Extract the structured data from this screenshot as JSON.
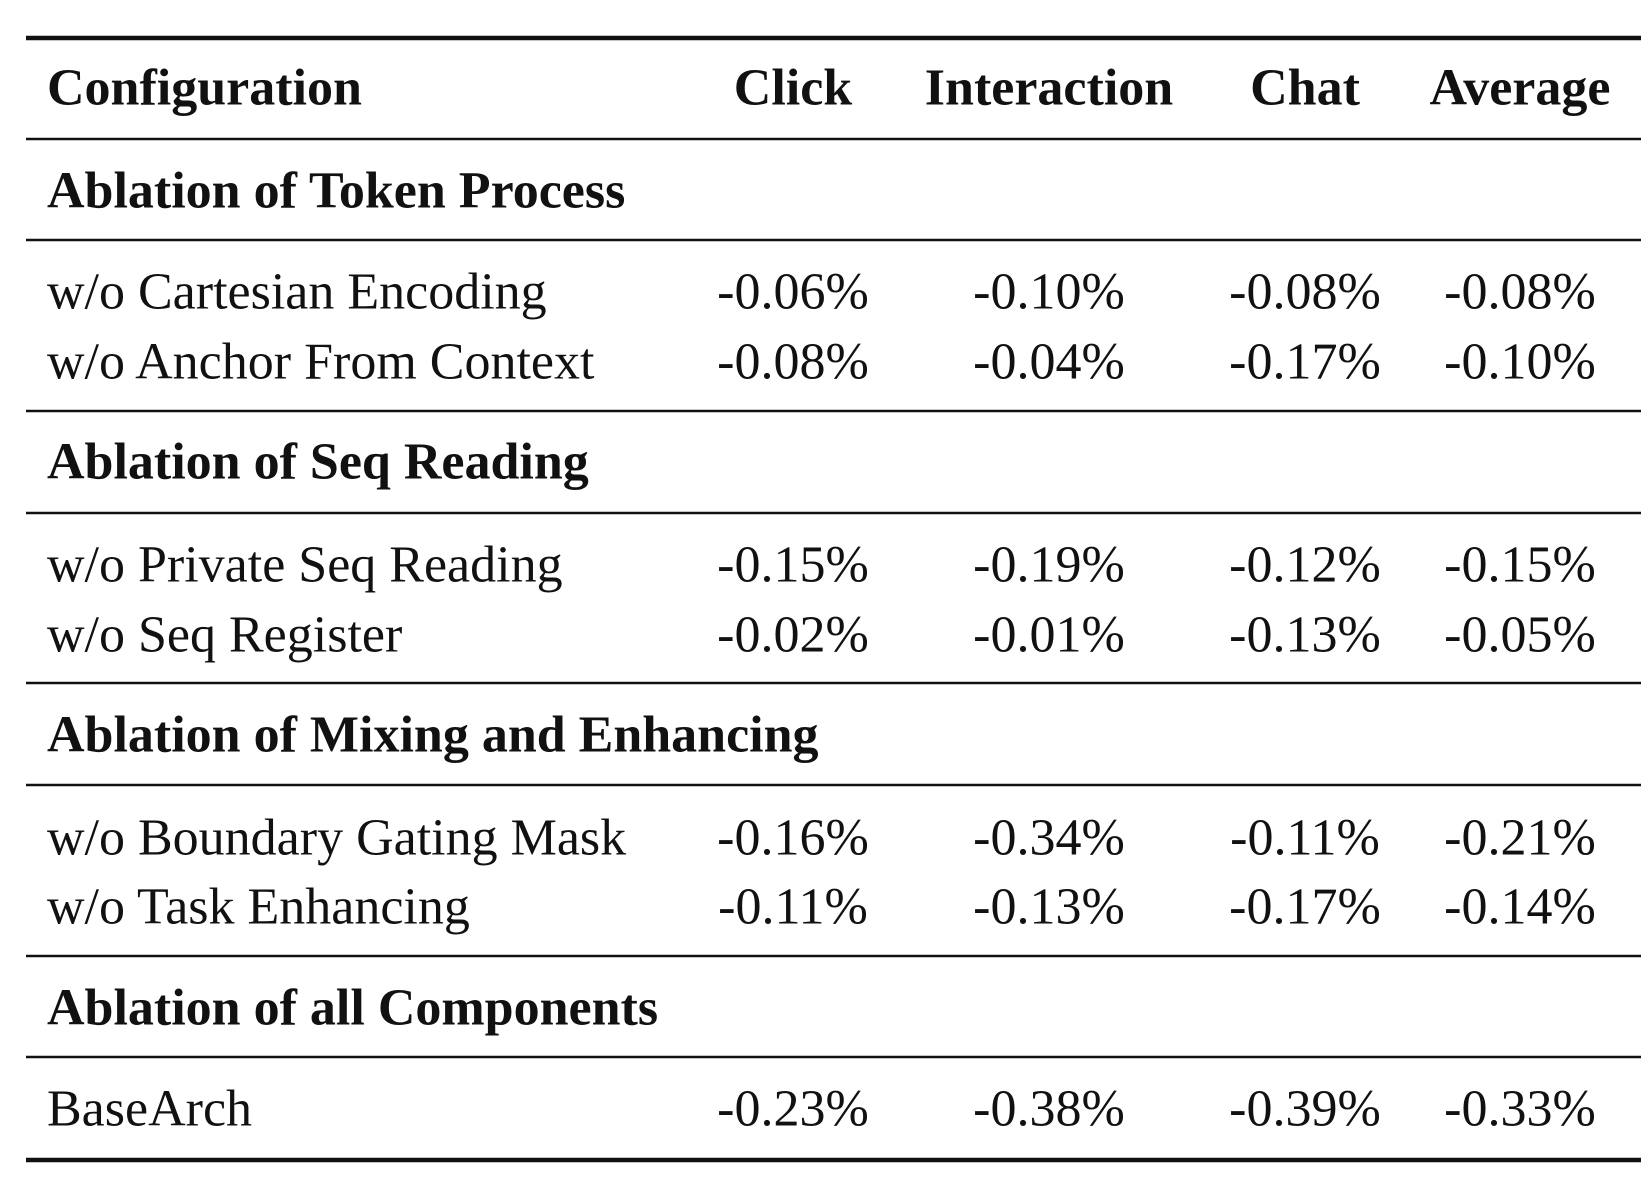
{
  "table": {
    "columns": [
      "Configuration",
      "Click",
      "Interaction",
      "Chat",
      "Average"
    ],
    "sections": [
      {
        "title": "Ablation of Token Process",
        "rows": [
          {
            "label": "w/o Cartesian Encoding",
            "values": [
              "-0.06%",
              "-0.10%",
              "-0.08%",
              "-0.08%"
            ]
          },
          {
            "label": "w/o Anchor From Context",
            "values": [
              "-0.08%",
              "-0.04%",
              "-0.17%",
              "-0.10%"
            ]
          }
        ]
      },
      {
        "title": "Ablation of Seq Reading",
        "rows": [
          {
            "label": "w/o Private Seq Reading",
            "values": [
              "-0.15%",
              "-0.19%",
              "-0.12%",
              "-0.15%"
            ]
          },
          {
            "label": "w/o Seq Register",
            "values": [
              "-0.02%",
              "-0.01%",
              "-0.13%",
              "-0.05%"
            ]
          }
        ]
      },
      {
        "title": "Ablation of Mixing and Enhancing",
        "rows": [
          {
            "label": "w/o Boundary Gating Mask",
            "values": [
              "-0.16%",
              "-0.34%",
              "-0.11%",
              "-0.21%"
            ]
          },
          {
            "label": "w/o Task Enhancing",
            "values": [
              "-0.11%",
              "-0.13%",
              "-0.17%",
              "-0.14%"
            ]
          }
        ]
      },
      {
        "title": "Ablation of all Components",
        "rows": [
          {
            "label": "BaseArch",
            "values": [
              "-0.23%",
              "-0.38%",
              "-0.39%",
              "-0.33%"
            ]
          }
        ]
      }
    ]
  }
}
